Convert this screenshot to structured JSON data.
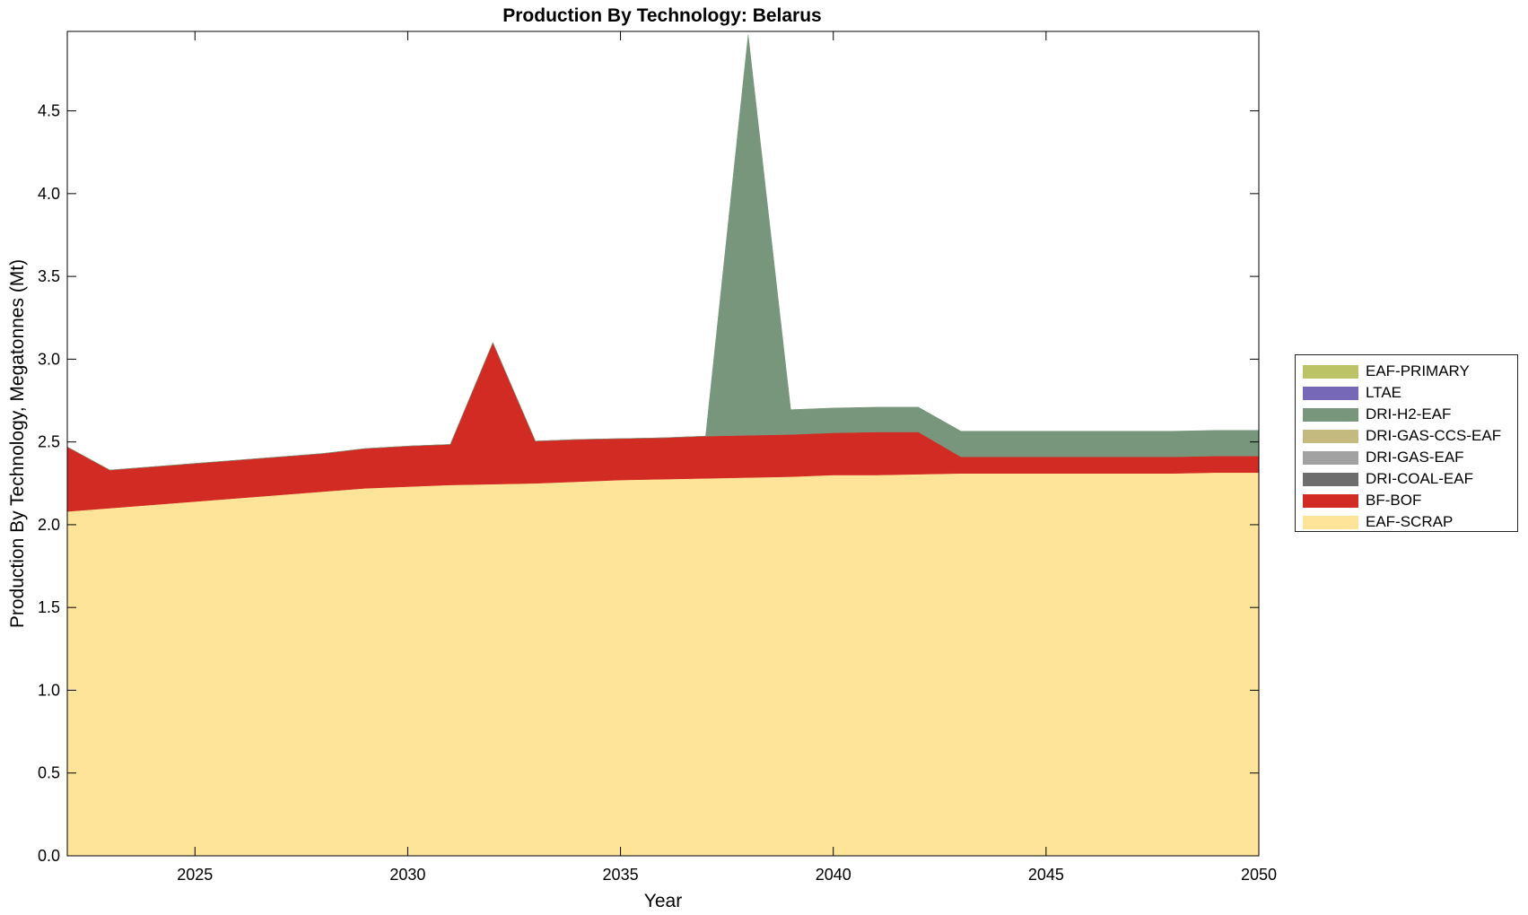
{
  "chart_data": {
    "type": "area",
    "stacked": true,
    "title": "Production By Technology: Belarus",
    "xlabel": "Year",
    "ylabel": "Production By Technology, Megatonnes (Mt)",
    "xlim": [
      2022,
      2050
    ],
    "ylim": [
      0,
      4.98
    ],
    "xticks": [
      "2025",
      "2030",
      "2035",
      "2040",
      "2045",
      "2050"
    ],
    "xtick_values": [
      2025,
      2030,
      2035,
      2040,
      2045,
      2050
    ],
    "yticks": [
      "0.0",
      "0.5",
      "1.0",
      "1.5",
      "2.0",
      "2.5",
      "3.0",
      "3.5",
      "4.0",
      "4.5"
    ],
    "ytick_values": [
      0,
      0.5,
      1.0,
      1.5,
      2.0,
      2.5,
      3.0,
      3.5,
      4.0,
      4.5
    ],
    "grid": false,
    "legend_position": "right",
    "x": [
      2022,
      2023,
      2024,
      2025,
      2026,
      2027,
      2028,
      2029,
      2030,
      2031,
      2032,
      2033,
      2034,
      2035,
      2036,
      2037,
      2038,
      2039,
      2040,
      2041,
      2042,
      2043,
      2044,
      2045,
      2046,
      2047,
      2048,
      2049,
      2050
    ],
    "series": [
      {
        "name": "EAF-SCRAP",
        "color": "#fde498",
        "values": [
          2.08,
          2.1,
          2.12,
          2.14,
          2.16,
          2.18,
          2.2,
          2.22,
          2.23,
          2.24,
          2.245,
          2.25,
          2.26,
          2.27,
          2.275,
          2.28,
          2.285,
          2.29,
          2.3,
          2.3,
          2.305,
          2.31,
          2.31,
          2.31,
          2.31,
          2.31,
          2.31,
          2.315,
          2.315
        ]
      },
      {
        "name": "BF-BOF",
        "color": "#d22b24",
        "values": [
          0.39,
          0.23,
          0.23,
          0.23,
          0.23,
          0.23,
          0.23,
          0.24,
          0.245,
          0.245,
          0.855,
          0.255,
          0.255,
          0.25,
          0.25,
          0.255,
          0.255,
          0.255,
          0.255,
          0.26,
          0.255,
          0.1,
          0.1,
          0.1,
          0.1,
          0.1,
          0.1,
          0.1,
          0.1
        ]
      },
      {
        "name": "DRI-COAL-EAF",
        "color": "#6d6d6d",
        "values": [
          0,
          0,
          0,
          0,
          0,
          0,
          0,
          0,
          0,
          0,
          0,
          0,
          0,
          0,
          0,
          0,
          0,
          0,
          0,
          0,
          0,
          0,
          0,
          0,
          0,
          0,
          0,
          0,
          0
        ]
      },
      {
        "name": "DRI-GAS-EAF",
        "color": "#a2a2a2",
        "values": [
          0,
          0,
          0,
          0,
          0,
          0,
          0,
          0,
          0,
          0,
          0,
          0,
          0,
          0,
          0,
          0,
          0,
          0,
          0,
          0,
          0,
          0,
          0,
          0,
          0,
          0,
          0,
          0,
          0
        ]
      },
      {
        "name": "DRI-GAS-CCS-EAF",
        "color": "#c4ba7f",
        "values": [
          0,
          0,
          0,
          0,
          0,
          0,
          0,
          0,
          0,
          0,
          0,
          0,
          0,
          0,
          0,
          0,
          0,
          0,
          0,
          0,
          0,
          0,
          0,
          0,
          0,
          0,
          0,
          0,
          0
        ]
      },
      {
        "name": "DRI-H2-EAF",
        "color": "#78967b",
        "values": [
          0,
          0,
          0,
          0,
          0,
          0,
          0,
          0,
          0,
          0,
          0,
          0,
          0,
          0,
          0,
          0,
          2.42,
          0.15,
          0.15,
          0.15,
          0.15,
          0.155,
          0.155,
          0.155,
          0.155,
          0.155,
          0.155,
          0.155,
          0.155
        ]
      },
      {
        "name": "LTAE",
        "color": "#7667b7",
        "values": [
          0,
          0,
          0,
          0,
          0,
          0,
          0,
          0,
          0,
          0,
          0,
          0,
          0,
          0,
          0,
          0,
          0,
          0,
          0,
          0,
          0,
          0,
          0,
          0,
          0,
          0,
          0,
          0,
          0
        ]
      },
      {
        "name": "EAF-PRIMARY",
        "color": "#bcc266",
        "values": [
          0,
          0,
          0,
          0,
          0,
          0,
          0,
          0,
          0,
          0,
          0,
          0,
          0,
          0,
          0,
          0,
          0,
          0,
          0,
          0,
          0,
          0,
          0,
          0,
          0,
          0,
          0,
          0,
          0
        ]
      }
    ],
    "legend_order": [
      "EAF-PRIMARY",
      "LTAE",
      "DRI-H2-EAF",
      "DRI-GAS-CCS-EAF",
      "DRI-GAS-EAF",
      "DRI-COAL-EAF",
      "BF-BOF",
      "EAF-SCRAP"
    ]
  }
}
